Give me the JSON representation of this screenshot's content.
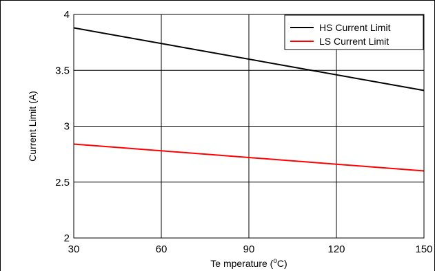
{
  "chart_data": {
    "type": "line",
    "title": "",
    "xlabel": "Temperature (°C)",
    "xlabel_parts": {
      "pre": "Te mperature (",
      "sup": "o",
      "post": "C)"
    },
    "ylabel": "Current Limit (A)",
    "xlim": [
      30,
      150
    ],
    "ylim": [
      2,
      4
    ],
    "xticks": [
      30,
      60,
      90,
      120,
      150
    ],
    "xtick_labels": [
      "30",
      "60",
      "90",
      "120",
      "150"
    ],
    "yticks": [
      2,
      2.5,
      3,
      3.5,
      4
    ],
    "ytick_labels": [
      "2",
      "2.5",
      "3",
      "3.5",
      "4"
    ],
    "grid": true,
    "legend_position": "top-right",
    "series": [
      {
        "name": "HS Current Limit",
        "color": "#000000",
        "x": [
          30,
          150
        ],
        "y": [
          3.88,
          3.32
        ]
      },
      {
        "name": "LS Current Limit",
        "color": "#ff0000",
        "x": [
          30,
          150
        ],
        "y": [
          2.84,
          2.6
        ]
      }
    ]
  }
}
